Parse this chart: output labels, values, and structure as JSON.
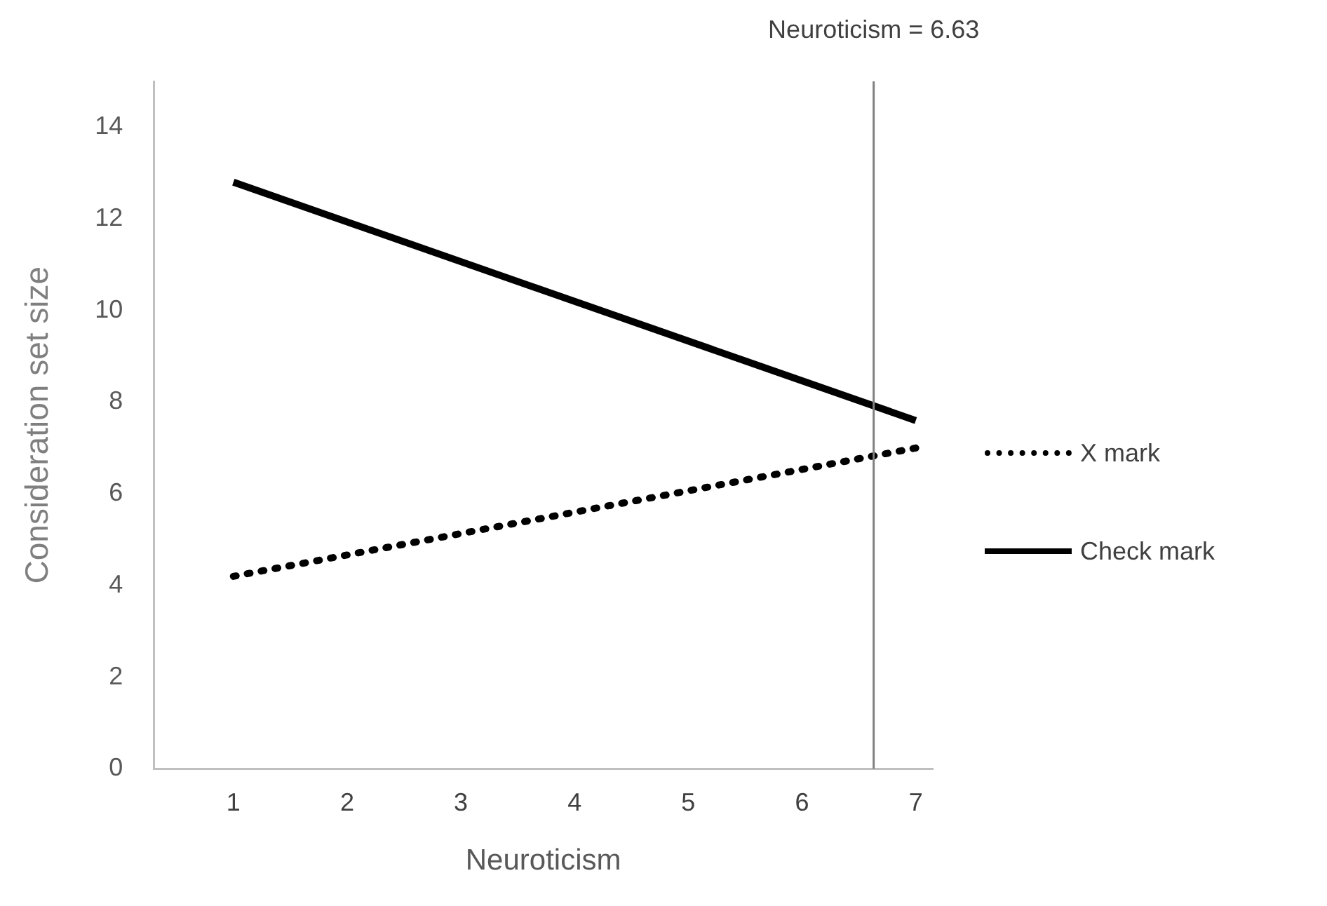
{
  "chart_data": {
    "type": "line",
    "xlabel": "Neuroticism",
    "ylabel": "Consideration set size",
    "xlim": [
      0.3,
      7.15
    ],
    "xticks": [
      1,
      2,
      3,
      4,
      5,
      6,
      7
    ],
    "ylim": [
      0,
      15
    ],
    "yticks": [
      0,
      2,
      4,
      6,
      8,
      10,
      12,
      14
    ],
    "x": [
      1,
      7
    ],
    "grid": false,
    "legend": "right",
    "marker": "none",
    "series": [
      {
        "name": "X mark",
        "color": "#000000",
        "line_style": "dotted",
        "values": [
          4.2,
          7.0
        ]
      },
      {
        "name": "Check mark",
        "color": "#000000",
        "line_style": "solid",
        "values": [
          12.8,
          7.6
        ]
      }
    ],
    "ref_lines": [
      {
        "axis": "x",
        "value": 6.63,
        "label": "Neuroticism = 6.63",
        "color": "#808080"
      }
    ]
  }
}
